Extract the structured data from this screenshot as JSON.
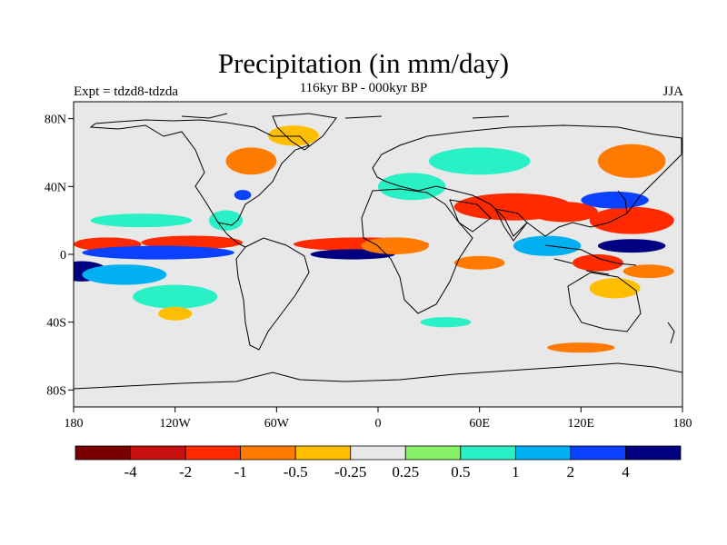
{
  "header": {
    "title": "Precipitation (in mm/day)",
    "subtitle": "116kyr BP - 000kyr BP",
    "left_label": "Expt = tdzd8-tdzda",
    "right_label": "JJA"
  },
  "axes": {
    "y_ticks": [
      {
        "lat": 80,
        "label": "80N"
      },
      {
        "lat": 40,
        "label": "40N"
      },
      {
        "lat": 0,
        "label": "0"
      },
      {
        "lat": -40,
        "label": "40S"
      },
      {
        "lat": -80,
        "label": "80S"
      }
    ],
    "x_ticks": [
      {
        "lon": -180,
        "label": "180"
      },
      {
        "lon": -120,
        "label": "120W"
      },
      {
        "lon": -60,
        "label": "60W"
      },
      {
        "lon": 0,
        "label": "0"
      },
      {
        "lon": 60,
        "label": "60E"
      },
      {
        "lon": 120,
        "label": "120E"
      },
      {
        "lon": 180,
        "label": "180"
      }
    ],
    "lat_range": [
      -90,
      90
    ],
    "lon_range": [
      -180,
      180
    ]
  },
  "colorbar": {
    "colors": [
      "#7a0000",
      "#c81010",
      "#ff2a00",
      "#ff7a00",
      "#ffbf00",
      "#e8e8e8",
      "#86f26a",
      "#2af0c6",
      "#00b0f0",
      "#0a40ff",
      "#000080"
    ],
    "labels": [
      "-4",
      "-2",
      "-1",
      "-0.5",
      "-0.25",
      "0.25",
      "0.5",
      "1",
      "2",
      "4"
    ]
  },
  "map": {
    "background_color": "#e8e8e8",
    "anomaly_patches": [
      {
        "lon": -160,
        "lat": 6,
        "rx": 20,
        "ry": 4,
        "level": 2
      },
      {
        "lon": -110,
        "lat": 7,
        "rx": 30,
        "ry": 4,
        "level": 2
      },
      {
        "lon": -130,
        "lat": 1,
        "rx": 45,
        "ry": 4,
        "level": 9
      },
      {
        "lon": -175,
        "lat": -10,
        "rx": 15,
        "ry": 6,
        "level": 10
      },
      {
        "lon": -150,
        "lat": -12,
        "rx": 25,
        "ry": 6,
        "level": 8
      },
      {
        "lon": -140,
        "lat": 20,
        "rx": 30,
        "ry": 4,
        "level": 7
      },
      {
        "lon": -120,
        "lat": -25,
        "rx": 25,
        "ry": 7,
        "level": 7
      },
      {
        "lon": -80,
        "lat": 35,
        "rx": 5,
        "ry": 3,
        "level": 9
      },
      {
        "lon": -75,
        "lat": 55,
        "rx": 15,
        "ry": 8,
        "level": 3
      },
      {
        "lon": -50,
        "lat": 70,
        "rx": 15,
        "ry": 6,
        "level": 4
      },
      {
        "lon": -90,
        "lat": 20,
        "rx": 10,
        "ry": 6,
        "level": 7
      },
      {
        "lon": -10,
        "lat": 6,
        "rx": 40,
        "ry": 4,
        "level": 2
      },
      {
        "lon": -15,
        "lat": 0,
        "rx": 25,
        "ry": 3,
        "level": 10
      },
      {
        "lon": 10,
        "lat": 5,
        "rx": 20,
        "ry": 5,
        "level": 3
      },
      {
        "lon": 80,
        "lat": 28,
        "rx": 35,
        "ry": 8,
        "level": 2
      },
      {
        "lon": 110,
        "lat": 25,
        "rx": 20,
        "ry": 6,
        "level": 2
      },
      {
        "lon": 100,
        "lat": 5,
        "rx": 20,
        "ry": 6,
        "level": 8
      },
      {
        "lon": 150,
        "lat": 20,
        "rx": 25,
        "ry": 8,
        "level": 2
      },
      {
        "lon": 140,
        "lat": 32,
        "rx": 20,
        "ry": 5,
        "level": 9
      },
      {
        "lon": 150,
        "lat": 5,
        "rx": 20,
        "ry": 4,
        "level": 10
      },
      {
        "lon": 130,
        "lat": -5,
        "rx": 15,
        "ry": 5,
        "level": 2
      },
      {
        "lon": 160,
        "lat": -10,
        "rx": 15,
        "ry": 4,
        "level": 3
      },
      {
        "lon": 140,
        "lat": -20,
        "rx": 15,
        "ry": 6,
        "level": 4
      },
      {
        "lon": 60,
        "lat": -5,
        "rx": 15,
        "ry": 4,
        "level": 3
      },
      {
        "lon": 120,
        "lat": -55,
        "rx": 20,
        "ry": 3,
        "level": 3
      },
      {
        "lon": -120,
        "lat": -35,
        "rx": 10,
        "ry": 4,
        "level": 4
      },
      {
        "lon": 40,
        "lat": -40,
        "rx": 15,
        "ry": 3,
        "level": 7
      },
      {
        "lon": 20,
        "lat": 40,
        "rx": 20,
        "ry": 8,
        "level": 7
      },
      {
        "lon": 60,
        "lat": 55,
        "rx": 30,
        "ry": 8,
        "level": 7
      },
      {
        "lon": 150,
        "lat": 55,
        "rx": 20,
        "ry": 10,
        "level": 3
      }
    ]
  }
}
